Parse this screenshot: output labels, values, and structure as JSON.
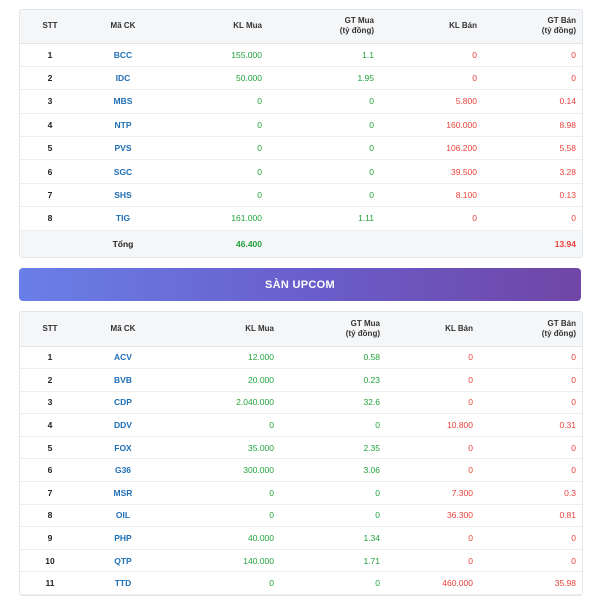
{
  "columns": {
    "stt": "STT",
    "code": "Mã CK",
    "kl_mua": "KL Mua",
    "gt_mua_1": "GT Mua",
    "gt_mua_2": "(tỷ đồng)",
    "kl_ban": "KL Bán",
    "gt_ban_1": "GT Bán",
    "gt_ban_2": "(tỷ đồng)"
  },
  "hnx": {
    "rows": [
      {
        "stt": "1",
        "code": "BCC",
        "kl_mua": "155.000",
        "gt_mua": "1.1",
        "kl_ban": "0",
        "gt_ban": "0"
      },
      {
        "stt": "2",
        "code": "IDC",
        "kl_mua": "50.000",
        "gt_mua": "1.95",
        "kl_ban": "0",
        "gt_ban": "0"
      },
      {
        "stt": "3",
        "code": "MBS",
        "kl_mua": "0",
        "gt_mua": "0",
        "kl_ban": "5.800",
        "gt_ban": "0.14"
      },
      {
        "stt": "4",
        "code": "NTP",
        "kl_mua": "0",
        "gt_mua": "0",
        "kl_ban": "160.000",
        "gt_ban": "8.98"
      },
      {
        "stt": "5",
        "code": "PVS",
        "kl_mua": "0",
        "gt_mua": "0",
        "kl_ban": "106.200",
        "gt_ban": "5.58"
      },
      {
        "stt": "6",
        "code": "SGC",
        "kl_mua": "0",
        "gt_mua": "0",
        "kl_ban": "39.500",
        "gt_ban": "3.28"
      },
      {
        "stt": "7",
        "code": "SHS",
        "kl_mua": "0",
        "gt_mua": "0",
        "kl_ban": "8.100",
        "gt_ban": "0.13"
      },
      {
        "stt": "8",
        "code": "TIG",
        "kl_mua": "161.000",
        "gt_mua": "1.11",
        "kl_ban": "0",
        "gt_ban": "0"
      }
    ],
    "total": {
      "label": "Tổng",
      "kl_mua": "46.400",
      "gt_ban": "13.94"
    }
  },
  "upcom": {
    "title": "SÀN UPCOM",
    "rows": [
      {
        "stt": "1",
        "code": "ACV",
        "kl_mua": "12.000",
        "gt_mua": "0.58",
        "kl_ban": "0",
        "gt_ban": "0"
      },
      {
        "stt": "2",
        "code": "BVB",
        "kl_mua": "20.000",
        "gt_mua": "0.23",
        "kl_ban": "0",
        "gt_ban": "0"
      },
      {
        "stt": "3",
        "code": "CDP",
        "kl_mua": "2.040.000",
        "gt_mua": "32.6",
        "kl_ban": "0",
        "gt_ban": "0"
      },
      {
        "stt": "4",
        "code": "DDV",
        "kl_mua": "0",
        "gt_mua": "0",
        "kl_ban": "10.800",
        "gt_ban": "0.31"
      },
      {
        "stt": "5",
        "code": "FOX",
        "kl_mua": "35.000",
        "gt_mua": "2.35",
        "kl_ban": "0",
        "gt_ban": "0"
      },
      {
        "stt": "6",
        "code": "G36",
        "kl_mua": "300.000",
        "gt_mua": "3.06",
        "kl_ban": "0",
        "gt_ban": "0"
      },
      {
        "stt": "7",
        "code": "MSR",
        "kl_mua": "0",
        "gt_mua": "0",
        "kl_ban": "7.300",
        "gt_ban": "0.3"
      },
      {
        "stt": "8",
        "code": "OIL",
        "kl_mua": "0",
        "gt_mua": "0",
        "kl_ban": "36.300",
        "gt_ban": "0.81"
      },
      {
        "stt": "9",
        "code": "PHP",
        "kl_mua": "40.000",
        "gt_mua": "1.34",
        "kl_ban": "0",
        "gt_ban": "0"
      },
      {
        "stt": "10",
        "code": "QTP",
        "kl_mua": "140.000",
        "gt_mua": "1.71",
        "kl_ban": "0",
        "gt_ban": "0"
      },
      {
        "stt": "11",
        "code": "TTD",
        "kl_mua": "0",
        "gt_mua": "0",
        "kl_ban": "460.000",
        "gt_ban": "35.98"
      }
    ]
  },
  "colors": {
    "buy": "#21a33a",
    "sell": "#e8413a",
    "code": "#1f6fb5",
    "banner_start": "#6a7fe8",
    "banner_end": "#7046a6"
  }
}
